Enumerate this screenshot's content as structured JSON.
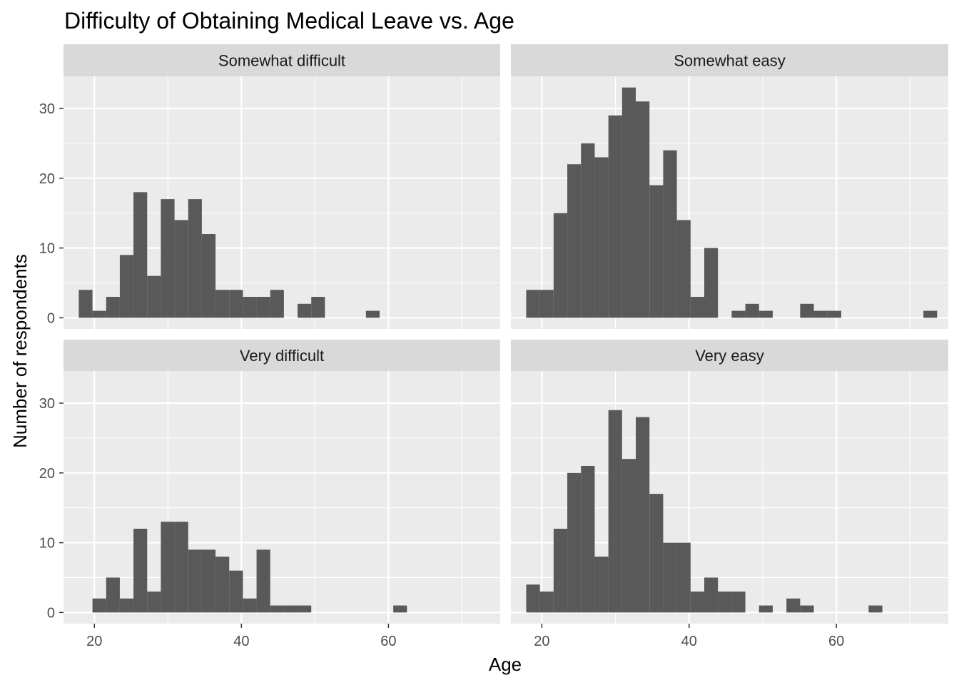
{
  "chart_data": {
    "type": "bar",
    "title": "Difficulty of Obtaining Medical Leave vs. Age",
    "xlabel": "Age",
    "ylabel": "Number of respondents",
    "xlim": [
      15.8,
      75.2
    ],
    "ylim": [
      -1.6,
      34.6
    ],
    "x_breaks": [
      20,
      40,
      60
    ],
    "x_minor_breaks": [
      30,
      50,
      70
    ],
    "y_breaks": [
      0,
      10,
      20,
      30
    ],
    "y_minor_breaks": [
      5,
      15,
      25
    ],
    "bin_width": 1.86,
    "bin_starts": [
      17.88,
      19.74,
      21.6,
      23.46,
      25.32,
      27.18,
      29.04,
      30.9,
      32.76,
      34.62,
      36.48,
      38.34,
      40.2,
      42.06,
      43.92,
      45.78,
      47.64,
      49.5,
      51.36,
      53.22,
      55.08,
      56.94,
      58.8,
      60.66,
      62.52,
      64.38,
      66.24,
      68.1,
      69.96,
      71.82
    ],
    "panels": [
      {
        "label": "Somewhat difficult",
        "counts": [
          4,
          1,
          3,
          9,
          18,
          6,
          17,
          14,
          17,
          12,
          4,
          4,
          3,
          3,
          4,
          0,
          2,
          3,
          0,
          0,
          0,
          1,
          0,
          0,
          0,
          0,
          0,
          0,
          0,
          0
        ]
      },
      {
        "label": "Somewhat easy",
        "counts": [
          4,
          4,
          15,
          22,
          25,
          23,
          29,
          33,
          31,
          19,
          24,
          14,
          3,
          10,
          0,
          1,
          2,
          1,
          0,
          0,
          2,
          1,
          1,
          0,
          0,
          0,
          0,
          0,
          0,
          1
        ]
      },
      {
        "label": "Very difficult",
        "counts": [
          0,
          2,
          5,
          2,
          12,
          3,
          13,
          13,
          9,
          9,
          8,
          6,
          2,
          9,
          1,
          1,
          1,
          0,
          0,
          0,
          0,
          0,
          0,
          1,
          0,
          0,
          0,
          0,
          0,
          0
        ]
      },
      {
        "label": "Very easy",
        "counts": [
          4,
          3,
          12,
          20,
          21,
          8,
          29,
          22,
          28,
          17,
          10,
          10,
          3,
          5,
          3,
          3,
          0,
          1,
          0,
          2,
          1,
          0,
          0,
          0,
          0,
          1,
          0,
          0,
          0,
          0
        ]
      }
    ],
    "colors": {
      "panel_background": "#ebebeb",
      "strip_background": "#d9d9d9",
      "grid": "#ffffff",
      "bar_fill": "#595959",
      "tick_label": "#4d4d4d",
      "tick_mark": "#333333"
    },
    "grid": true
  }
}
